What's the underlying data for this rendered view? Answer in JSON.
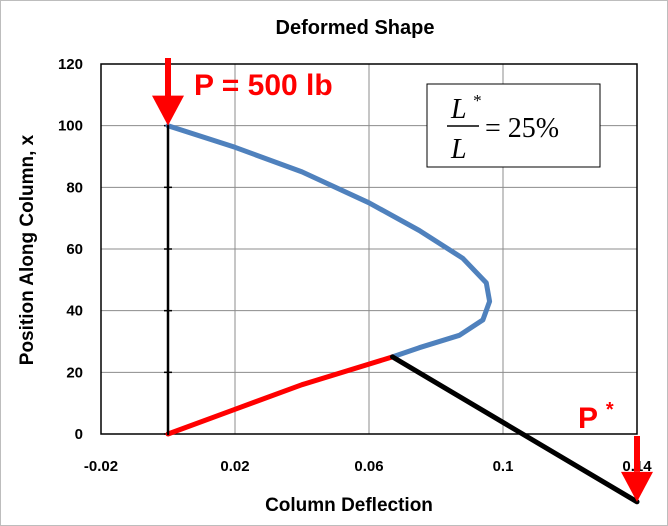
{
  "chart_data": {
    "type": "line",
    "title": "Deformed Shape",
    "xlabel": "Column Deflection",
    "ylabel": "Position Along Column, x",
    "xlim": [
      -0.02,
      0.14
    ],
    "ylim": [
      0,
      120
    ],
    "xticks": [
      "-0.02",
      "0.02",
      "0.06",
      "0.1",
      "0.14"
    ],
    "xtick_values": [
      -0.02,
      0.02,
      0.06,
      0.1,
      0.14
    ],
    "yticks": [
      "0",
      "20",
      "40",
      "60",
      "80",
      "100",
      "120"
    ],
    "ytick_values": [
      0,
      20,
      40,
      60,
      80,
      100,
      120
    ],
    "grid": true,
    "legend": "none",
    "series": [
      {
        "color": "#4f81bd",
        "x": [
          0,
          0.02,
          0.04,
          0.06,
          0.075,
          0.088,
          0.095,
          0.096,
          0.094,
          0.087,
          0.075,
          0.067
        ],
        "y": [
          100,
          93,
          85,
          75,
          66,
          57,
          49,
          43,
          37,
          32,
          28,
          25
        ]
      },
      {
        "color": "#ff0000",
        "x": [
          0,
          0.02,
          0.04,
          0.067
        ],
        "y": [
          0,
          8,
          16,
          25
        ]
      },
      {
        "color": "#000000",
        "x": [
          0,
          0
        ],
        "y": [
          0,
          100
        ]
      },
      {
        "color": "#000000",
        "x": [
          0.067,
          0.14
        ],
        "y": [
          25,
          -22
        ]
      }
    ],
    "annotations": {
      "load_top": "P = 500 lb",
      "load_end": "P",
      "load_end_sup": "*",
      "ratio_num": "L",
      "ratio_num_sup": "*",
      "ratio_den": "L",
      "ratio_value": "= 25%"
    },
    "arrow_color": "#ff0000"
  }
}
